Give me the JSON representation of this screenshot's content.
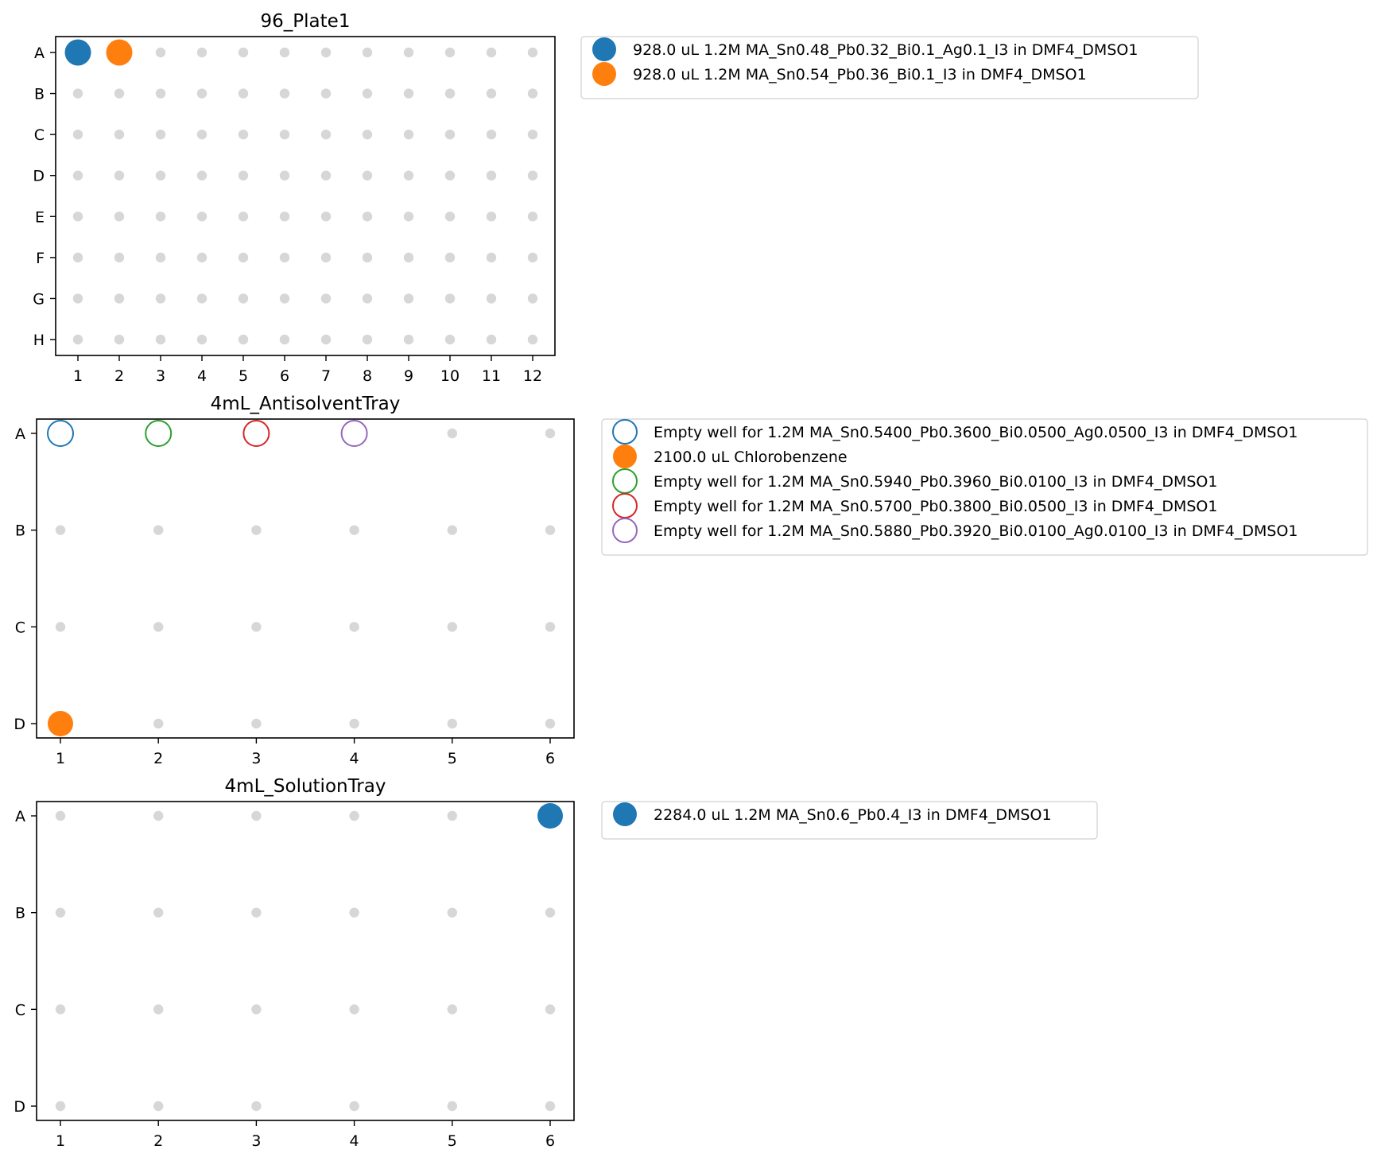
{
  "chart_data": [
    {
      "type": "scatter",
      "title": "96_Plate1",
      "rows": [
        "A",
        "B",
        "C",
        "D",
        "E",
        "F",
        "G",
        "H"
      ],
      "columns": [
        "1",
        "2",
        "3",
        "4",
        "5",
        "6",
        "7",
        "8",
        "9",
        "10",
        "11",
        "12"
      ],
      "empty_well_color": "#d3d3d3",
      "series": [
        {
          "name": "928.0 uL 1.2M MA_Sn0.48_Pb0.32_Bi0.1_Ag0.1_I3 in DMF4_DMSO1",
          "color": "#1f77b4",
          "filled": true,
          "wells": [
            "A1"
          ]
        },
        {
          "name": "928.0 uL 1.2M MA_Sn0.54_Pb0.36_Bi0.1_I3 in DMF4_DMSO1",
          "color": "#ff7f0e",
          "filled": true,
          "wells": [
            "A2"
          ]
        }
      ]
    },
    {
      "type": "scatter",
      "title": "4mL_AntisolventTray",
      "rows": [
        "A",
        "B",
        "C",
        "D"
      ],
      "columns": [
        "1",
        "2",
        "3",
        "4",
        "5",
        "6"
      ],
      "empty_well_color": "#d3d3d3",
      "series": [
        {
          "name": "Empty well for 1.2M MA_Sn0.5400_Pb0.3600_Bi0.0500_Ag0.0500_I3 in DMF4_DMSO1",
          "color": "#1f77b4",
          "filled": false,
          "wells": [
            "A1"
          ]
        },
        {
          "name": "2100.0 uL Chlorobenzene",
          "color": "#ff7f0e",
          "filled": true,
          "wells": [
            "D1"
          ]
        },
        {
          "name": "Empty well for 1.2M MA_Sn0.5940_Pb0.3960_Bi0.0100_I3 in DMF4_DMSO1",
          "color": "#2ca02c",
          "filled": false,
          "wells": [
            "A2"
          ]
        },
        {
          "name": "Empty well for 1.2M MA_Sn0.5700_Pb0.3800_Bi0.0500_I3 in DMF4_DMSO1",
          "color": "#d62728",
          "filled": false,
          "wells": [
            "A3"
          ]
        },
        {
          "name": "Empty well for 1.2M MA_Sn0.5880_Pb0.3920_Bi0.0100_Ag0.0100_I3 in DMF4_DMSO1",
          "color": "#9467bd",
          "filled": false,
          "wells": [
            "A4"
          ]
        }
      ]
    },
    {
      "type": "scatter",
      "title": "4mL_SolutionTray",
      "rows": [
        "A",
        "B",
        "C",
        "D"
      ],
      "columns": [
        "1",
        "2",
        "3",
        "4",
        "5",
        "6"
      ],
      "empty_well_color": "#d3d3d3",
      "series": [
        {
          "name": "2284.0 uL 1.2M MA_Sn0.6_Pb0.4_I3 in DMF4_DMSO1",
          "color": "#1f77b4",
          "filled": true,
          "wells": [
            "A6"
          ]
        }
      ]
    }
  ]
}
